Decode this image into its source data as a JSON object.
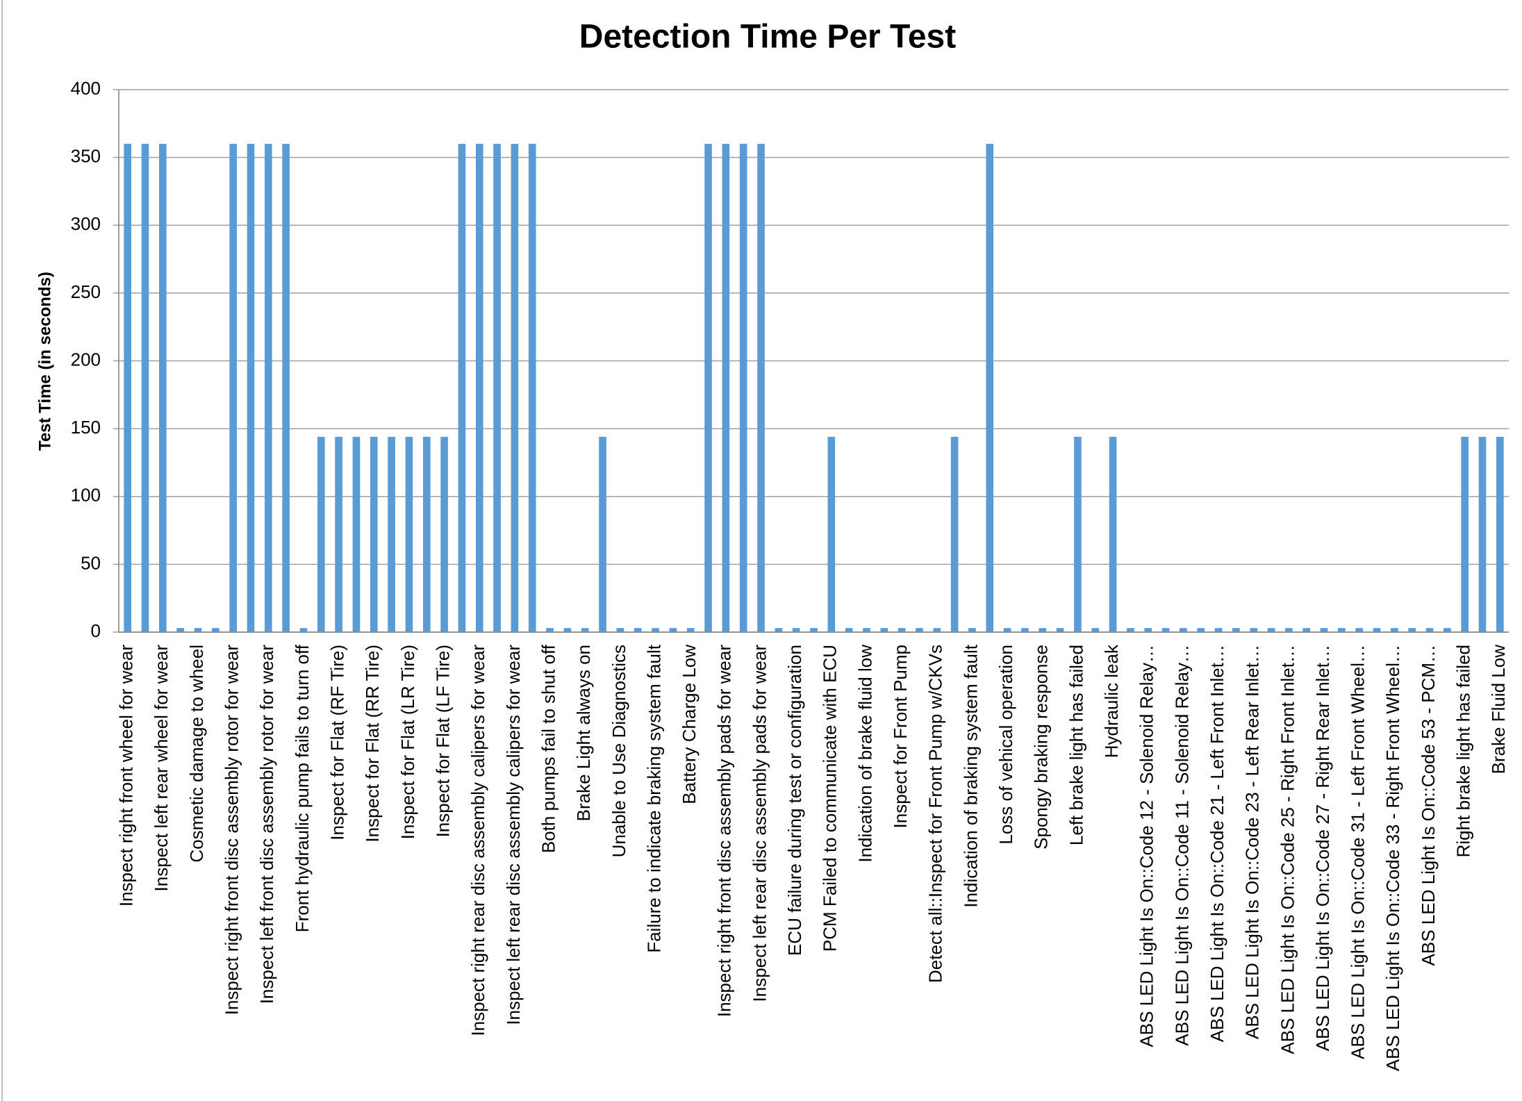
{
  "chart_data": {
    "type": "bar",
    "title": "Detection Time Per Test",
    "y_label": "Test Time (in seconds)",
    "categories": [
      "Inspect right front wheel for wear",
      null,
      "Inspect left rear wheel for wear",
      null,
      "Cosmetic damage to wheel",
      null,
      "Inspect right front disc assembly rotor for wear",
      null,
      "Inspect left front disc assembly rotor for wear",
      null,
      "Front hydraulic pump fails to turn off",
      null,
      "Inspect for Flat (RF Tire)",
      null,
      "Inspect for Flat (RR Tire)",
      null,
      "Inspect for Flat (LR Tire)",
      null,
      "Inspect for Flat (LF Tire)",
      null,
      "Inspect right rear disc assembly calipers for wear",
      null,
      "Inspect left rear disc assembly calipers for wear",
      null,
      "Both pumps fail to shut off",
      null,
      "Brake Light always on",
      null,
      "Unable to Use Diagnostics",
      null,
      "Failure to indicate braking system fault",
      null,
      "Battery Charge Low",
      null,
      "Inspect right front disc assembly pads for wear",
      null,
      "Inspect left rear disc assembly pads for wear",
      null,
      "ECU failure during test or configuration",
      null,
      "PCM Failed to communicate with ECU",
      null,
      "Indication of brake fluid low",
      null,
      "Inspect for Front Pump",
      null,
      "Detect all::Inspect for Front Pump w/CKVs",
      null,
      "Indication of braking system fault",
      null,
      "Loss of vehical operation",
      null,
      "Spongy braking response",
      null,
      "Left brake light has failed",
      null,
      "Hydraulic leak",
      null,
      "ABS LED Light Is On::Code 12 - Solenoid Relay…",
      null,
      "ABS LED Light Is On::Code 11 - Solenoid Relay…",
      null,
      "ABS LED Light Is On::Code 21 - Left Front Inlet…",
      null,
      "ABS LED Light Is On::Code 23 - Left Rear Inlet…",
      null,
      "ABS LED Light Is On::Code 25 - Right Front Inlet…",
      null,
      "ABS LED Light Is On::Code 27 - Right Rear Inlet…",
      null,
      "ABS LED Light Is On::Code 31 - Left Front Wheel…",
      null,
      "ABS LED Light Is On::Code 33 - Right Front Wheel…",
      null,
      "ABS LED Light Is On::Code 53 - PCM…",
      null,
      "Right brake light has failed",
      null,
      "Brake Fluid Low"
    ],
    "values": [
      360,
      360,
      360,
      3,
      3,
      3,
      360,
      360,
      360,
      360,
      3,
      144,
      144,
      144,
      144,
      144,
      144,
      144,
      144,
      360,
      360,
      360,
      360,
      360,
      3,
      3,
      3,
      144,
      3,
      3,
      3,
      3,
      3,
      360,
      360,
      360,
      360,
      3,
      3,
      3,
      144,
      3,
      3,
      3,
      3,
      3,
      3,
      144,
      3,
      360,
      3,
      3,
      3,
      3,
      144,
      3,
      144,
      3,
      3,
      3,
      3,
      3,
      3,
      3,
      3,
      3,
      3,
      3,
      3,
      3,
      3,
      3,
      3,
      3,
      3,
      3,
      144,
      144,
      144
    ],
    "color": "#5b9bd5",
    "ylim": [
      0,
      400
    ],
    "yticks": [
      0,
      50,
      100,
      150,
      200,
      250,
      300,
      350,
      400
    ],
    "grid": true
  }
}
